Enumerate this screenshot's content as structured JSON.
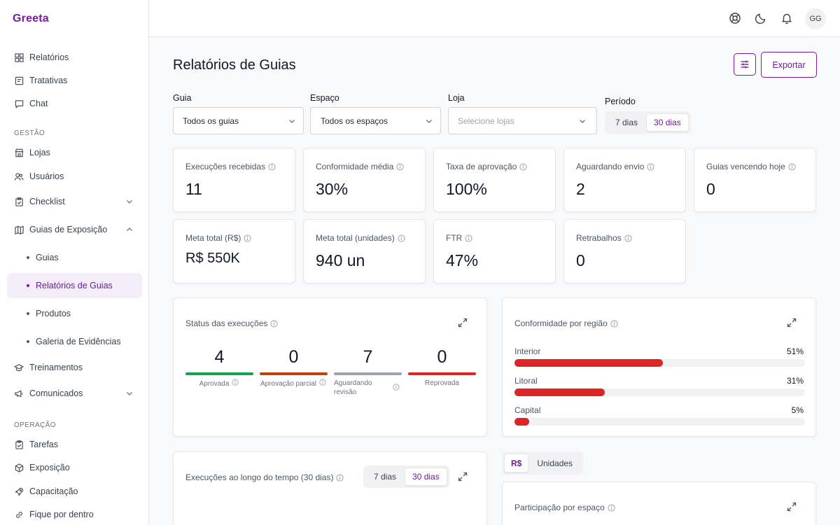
{
  "app": {
    "logo": "Greeta"
  },
  "sidebar": {
    "top_items": [
      {
        "label": "Relatórios",
        "icon": "grid-icon"
      },
      {
        "label": "Tratativas",
        "icon": "clipboard-icon"
      },
      {
        "label": "Chat",
        "icon": "chat-icon"
      }
    ],
    "section_gestao": "GESTÃO",
    "gestao_items": [
      {
        "label": "Lojas",
        "icon": "store-icon"
      },
      {
        "label": "Usuários",
        "icon": "users-icon"
      },
      {
        "label": "Checklist",
        "icon": "checklist-icon"
      },
      {
        "label": "Guias de Exposição",
        "icon": "map-icon"
      }
    ],
    "guias_sub": [
      {
        "label": "Guias"
      },
      {
        "label": "Relatórios de Guias",
        "active": true
      },
      {
        "label": "Produtos"
      },
      {
        "label": "Galeria de Evidências"
      }
    ],
    "more_items": [
      {
        "label": "Treinamentos",
        "icon": "graduation-icon"
      },
      {
        "label": "Comunicados",
        "icon": "megaphone-icon"
      }
    ],
    "section_operacao": "OPERAÇÃO",
    "operacao_items": [
      {
        "label": "Tarefas",
        "icon": "clipboard-check-icon"
      },
      {
        "label": "Exposição",
        "icon": "box-icon"
      },
      {
        "label": "Capacitação",
        "icon": "rocket-icon"
      },
      {
        "label": "Fique por dentro",
        "icon": "link-icon"
      }
    ]
  },
  "topbar": {
    "avatar": "GG"
  },
  "page": {
    "title": "Relatórios de Guias",
    "export_label": "Exportar"
  },
  "filters": {
    "guia": {
      "label": "Guia",
      "value": "Todos os guias"
    },
    "espaco": {
      "label": "Espaço",
      "value": "Todos os espaços"
    },
    "loja": {
      "label": "Loja",
      "placeholder": "Selecione lojas"
    },
    "periodo": {
      "label": "Período",
      "options": [
        "7 dias",
        "30 dias"
      ],
      "selected": "30 dias"
    }
  },
  "kpis": [
    {
      "label": "Execuções recebidas",
      "value": "11"
    },
    {
      "label": "Conformidade média",
      "value": "30%"
    },
    {
      "label": "Taxa de aprovação",
      "value": "100%"
    },
    {
      "label": "Aguardando envio",
      "value": "2"
    },
    {
      "label": "Guias vencendo hoje",
      "value": "0"
    },
    {
      "label": "Meta total (R$)",
      "value": "R$ 550K"
    },
    {
      "label": "Meta total (unidades)",
      "value": "940 un"
    },
    {
      "label": "FTR",
      "value": "47%"
    },
    {
      "label": "Retrabalhos",
      "value": "0"
    }
  ],
  "status_card": {
    "title": "Status das execuções",
    "items": [
      {
        "value": "4",
        "label": "Aprovada",
        "color": "#16a34a"
      },
      {
        "value": "0",
        "label": "Aprovação parcial",
        "color": "#c2410c"
      },
      {
        "value": "7",
        "label": "Aguardando revisão",
        "color": "#9ca3af"
      },
      {
        "value": "0",
        "label": "Reprovada",
        "color": "#dc2626"
      }
    ]
  },
  "region_card": {
    "title": "Conformidade por região",
    "regions": [
      {
        "name": "Interior",
        "pct_label": "51%",
        "pct": 51
      },
      {
        "name": "Litoral",
        "pct_label": "31%",
        "pct": 31
      },
      {
        "name": "Capital",
        "pct_label": "5%",
        "pct": 5
      }
    ]
  },
  "timeline_card": {
    "title": "Execuções ao longo do tempo (30 dias)",
    "options": [
      "7 dias",
      "30 dias"
    ],
    "selected": "30 dias"
  },
  "unit_toggle": {
    "options": [
      "R$",
      "Unidades"
    ],
    "selected": "R$"
  },
  "participation_card": {
    "title": "Participação por espaço"
  }
}
